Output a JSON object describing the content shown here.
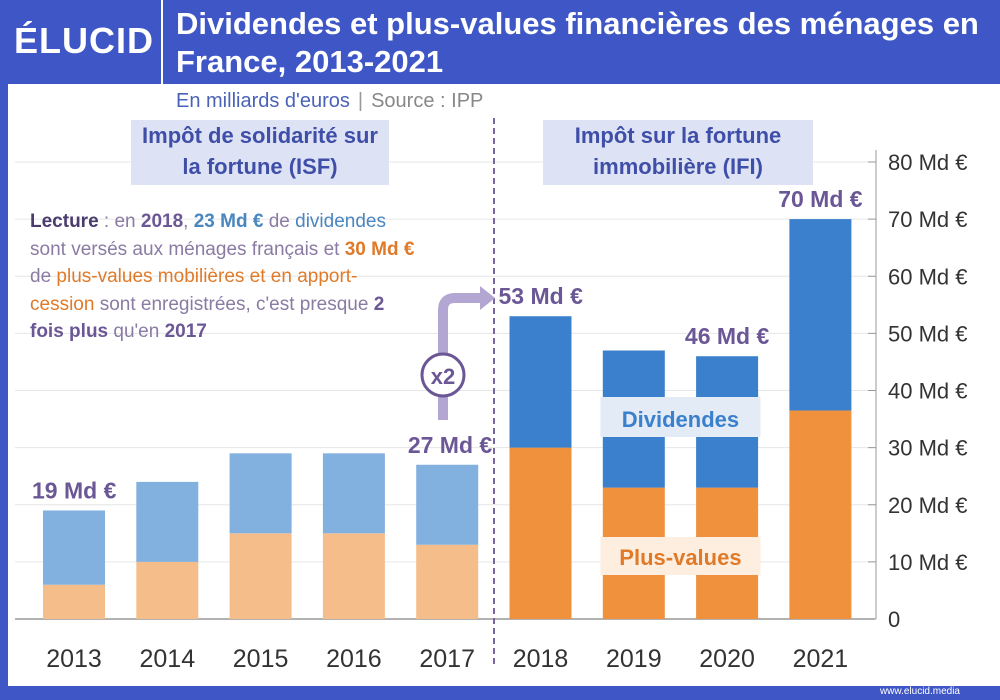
{
  "header": {
    "logo": "ÉLUCID",
    "title": "Dividendes et plus-values financières des ménages en France, 2013-2021",
    "unit": "En milliards d'euros",
    "source": "Source : IPP"
  },
  "periods": {
    "isf": "Impôt de solidarité sur la fortune (ISF)",
    "ifi": "Impôt sur la fortune immobilière (IFI)"
  },
  "lecture": [
    {
      "t": "Lecture",
      "c": "dk"
    },
    {
      "t": " : en ",
      "c": ""
    },
    {
      "t": "2018",
      "c": "pu"
    },
    {
      "t": ", ",
      "c": ""
    },
    {
      "t": "23 Md €",
      "c": "bl b"
    },
    {
      "t": " de ",
      "c": ""
    },
    {
      "t": "dividendes",
      "c": "bl"
    },
    {
      "t": " sont versés aux ménages français et ",
      "c": ""
    },
    {
      "t": "30 Md €",
      "c": "or b"
    },
    {
      "t": " de ",
      "c": ""
    },
    {
      "t": "plus-values mobilières et en apport-cession",
      "c": "or"
    },
    {
      "t": " sont enregistrées, c'est presque ",
      "c": ""
    },
    {
      "t": "2 fois plus",
      "c": "pu"
    },
    {
      "t": " qu'en ",
      "c": ""
    },
    {
      "t": "2017",
      "c": "pu"
    }
  ],
  "multiplier": "x2",
  "footer": "www.elucid.media",
  "chart_data": {
    "type": "bar",
    "stacked": true,
    "categories": [
      "2013",
      "2014",
      "2015",
      "2016",
      "2017",
      "2018",
      "2019",
      "2020",
      "2021"
    ],
    "series": [
      {
        "name": "Plus-values",
        "values": [
          6,
          10,
          15,
          15,
          13,
          30,
          23,
          23,
          36.5
        ],
        "colors": {
          "isf": "#f5bd8a",
          "ifi": "#ef913d"
        }
      },
      {
        "name": "Dividendes",
        "values": [
          13,
          14,
          14,
          14,
          14,
          23,
          24,
          23,
          33.5
        ],
        "colors": {
          "isf": "#82b0df",
          "ifi": "#3a80cc"
        }
      }
    ],
    "total_labels": [
      {
        "year": "2013",
        "text": "19 Md €"
      },
      {
        "year": "2017",
        "text": "27 Md €"
      },
      {
        "year": "2018",
        "text": "53 Md €"
      },
      {
        "year": "2020",
        "text": "46 Md €"
      },
      {
        "year": "2021",
        "text": "70 Md €"
      }
    ],
    "yticks": [
      "0",
      "10 Md €",
      "20 Md €",
      "30 Md €",
      "40 Md €",
      "50 Md €",
      "60 Md €",
      "70 Md €",
      "80 Md €"
    ],
    "ylim": [
      0,
      80
    ],
    "grid": true,
    "yaxis": "right"
  }
}
